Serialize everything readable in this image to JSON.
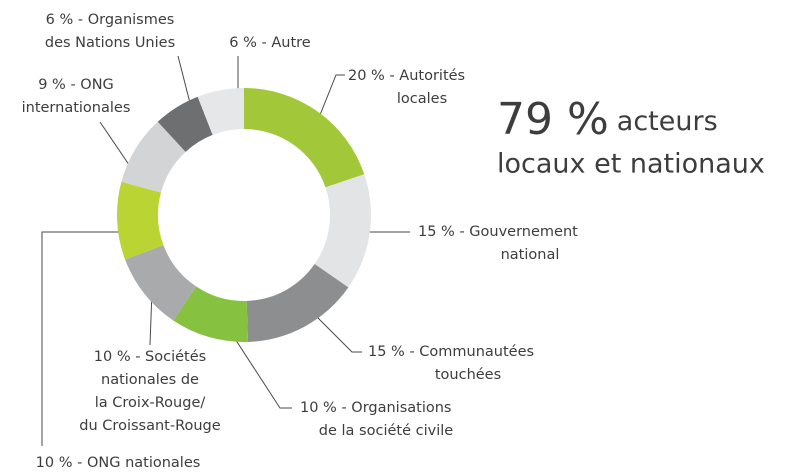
{
  "chart_data": {
    "type": "donut",
    "categories": [
      [
        "20 % - Autorités",
        "locales"
      ],
      [
        "15 % - Gouvernement",
        "national"
      ],
      [
        "15 % - Communautées",
        "touchées"
      ],
      [
        "10 % - Organisations",
        "de la société civile"
      ],
      [
        "10 % - Sociétés",
        "nationales de",
        "la Croix-Rouge/",
        "du Croissant-Rouge"
      ],
      [
        "10 % - ONG nationales"
      ],
      [
        "9 % - ONG",
        "internationales"
      ],
      [
        "6 % - Organismes",
        "des Nations Unies"
      ],
      [
        "6 % - Autre"
      ]
    ],
    "values": [
      20,
      15,
      15,
      10,
      10,
      10,
      9,
      6,
      6
    ],
    "colors": [
      "#a2c83a",
      "#e3e4e5",
      "#8d8e90",
      "#86c240",
      "#a9aaac",
      "#b9d433",
      "#d3d4d5",
      "#6e6f71",
      "#e6e7e8"
    ],
    "headline": {
      "figure": "79 %",
      "lines": [
        "acteurs",
        "locaux et nationaux"
      ]
    }
  }
}
